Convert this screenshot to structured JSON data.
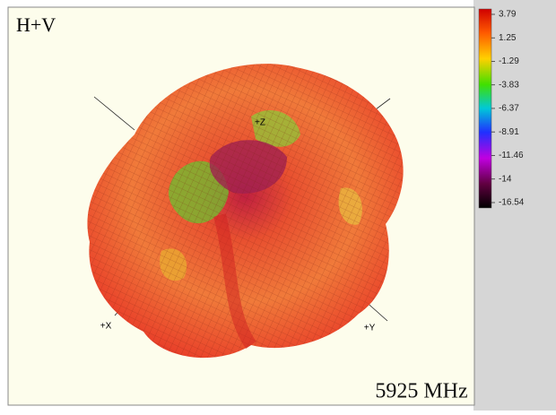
{
  "panel": {
    "title": "H+V",
    "frequency": "5925 MHz",
    "axes": {
      "x": "+X",
      "y": "+Y",
      "z": "+Z"
    }
  },
  "colorbar": {
    "range": [
      -16.54,
      3.79
    ],
    "ticks": [
      3.79,
      1.25,
      -1.29,
      -3.83,
      -6.37,
      -8.91,
      -11.46,
      -14,
      -16.54
    ]
  }
}
